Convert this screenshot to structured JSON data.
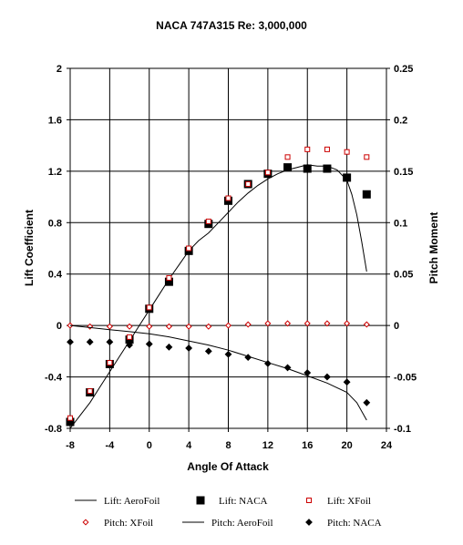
{
  "chart_data": {
    "type": "scatter",
    "title": "NACA 747A315 Re: 3,000,000",
    "xlabel": "Angle Of Attack",
    "ylabel": "Lift Coefficient",
    "y2label": "Pitch Moment",
    "xlim": [
      -8,
      24
    ],
    "ylim": [
      -0.8,
      2
    ],
    "y2lim": [
      -0.1,
      0.25
    ],
    "x_ticks": [
      -8,
      -4,
      0,
      4,
      8,
      12,
      16,
      20,
      24
    ],
    "y_ticks": [
      -0.8,
      -0.4,
      0,
      0.4,
      0.8,
      1.2,
      1.6,
      2
    ],
    "y2_ticks": [
      -0.1,
      -0.05,
      0,
      0.05,
      0.1,
      0.15,
      0.2,
      0.25
    ],
    "x_tick_labels": [
      "-8",
      "-4",
      "0",
      "4",
      "8",
      "12",
      "16",
      "20",
      "24"
    ],
    "y_tick_labels": [
      "-0.8",
      "-0.4",
      "0",
      "0.4",
      "0.8",
      "1.2",
      "1.6",
      "2"
    ],
    "y2_tick_labels": [
      "-0.1",
      "-0.05",
      "0",
      "0.05",
      "0.1",
      "0.15",
      "0.2",
      "0.25"
    ],
    "grid": true,
    "legend_position": "bottom",
    "series": [
      {
        "name": "Lift: AeroFoil",
        "kind": "line",
        "axis": "left",
        "color": "#000000",
        "x": [
          -8,
          -7,
          -6,
          -5,
          -4,
          -3,
          -2,
          -1,
          0,
          1,
          2,
          3,
          4,
          5,
          6,
          7,
          8,
          9,
          10,
          11,
          12,
          13,
          14,
          15,
          16,
          17,
          18,
          19,
          20,
          20.5,
          21,
          21.5,
          22
        ],
        "y": [
          -0.8,
          -0.7,
          -0.6,
          -0.48,
          -0.36,
          -0.24,
          -0.12,
          0.0,
          0.12,
          0.24,
          0.36,
          0.47,
          0.58,
          0.66,
          0.72,
          0.8,
          0.88,
          0.96,
          1.03,
          1.09,
          1.14,
          1.18,
          1.21,
          1.23,
          1.25,
          1.24,
          1.24,
          1.21,
          1.13,
          1.02,
          0.86,
          0.65,
          0.42
        ]
      },
      {
        "name": "Lift: NACA",
        "kind": "marker-square",
        "axis": "left",
        "color": "#000000",
        "x": [
          -8,
          -6,
          -4,
          -2,
          0,
          2,
          4,
          6,
          8,
          10,
          12,
          14,
          16,
          18,
          20,
          22
        ],
        "y": [
          -0.75,
          -0.52,
          -0.3,
          -0.11,
          0.13,
          0.34,
          0.58,
          0.79,
          0.97,
          1.1,
          1.18,
          1.23,
          1.22,
          1.22,
          1.15,
          1.02
        ]
      },
      {
        "name": "Lift: XFoil",
        "kind": "marker-hollow-square",
        "axis": "left",
        "color": "#cc0000",
        "x": [
          -8,
          -6,
          -4,
          -2,
          0,
          2,
          4,
          6,
          8,
          10,
          12,
          14,
          16,
          18,
          20,
          22
        ],
        "y": [
          -0.72,
          -0.51,
          -0.29,
          -0.09,
          0.14,
          0.37,
          0.6,
          0.81,
          0.99,
          1.1,
          1.19,
          1.31,
          1.37,
          1.37,
          1.35,
          1.31
        ]
      },
      {
        "name": "Pitch: XFoil",
        "kind": "marker-hollow-diamond",
        "axis": "right",
        "color": "#cc0000",
        "x": [
          -8,
          -6,
          -4,
          -2,
          0,
          2,
          4,
          6,
          8,
          10,
          12,
          14,
          16,
          18,
          20,
          22
        ],
        "y": [
          0.0,
          -0.001,
          -0.001,
          -0.001,
          -0.001,
          -0.001,
          -0.001,
          -0.001,
          0.0,
          0.001,
          0.002,
          0.002,
          0.002,
          0.002,
          0.002,
          0.001
        ]
      },
      {
        "name": "Pitch: AeroFoil",
        "kind": "line",
        "axis": "right",
        "color": "#000000",
        "x": [
          -8,
          -6,
          -4,
          -2,
          0,
          2,
          4,
          6,
          8,
          10,
          12,
          14,
          16,
          18,
          20,
          21,
          22
        ],
        "y": [
          0.0,
          -0.002,
          -0.004,
          -0.006,
          -0.008,
          -0.011,
          -0.015,
          -0.019,
          -0.024,
          -0.03,
          -0.036,
          -0.042,
          -0.049,
          -0.056,
          -0.065,
          -0.075,
          -0.092
        ]
      },
      {
        "name": "Pitch: NACA",
        "kind": "marker-diamond",
        "axis": "right",
        "color": "#000000",
        "x": [
          -8,
          -6,
          -4,
          -2,
          0,
          2,
          4,
          6,
          8,
          10,
          12,
          14,
          16,
          18,
          20,
          22
        ],
        "y": [
          -0.016,
          -0.016,
          -0.016,
          -0.019,
          -0.018,
          -0.021,
          -0.022,
          -0.025,
          -0.028,
          -0.031,
          -0.037,
          -0.041,
          -0.046,
          -0.05,
          -0.055,
          -0.075
        ]
      }
    ]
  }
}
